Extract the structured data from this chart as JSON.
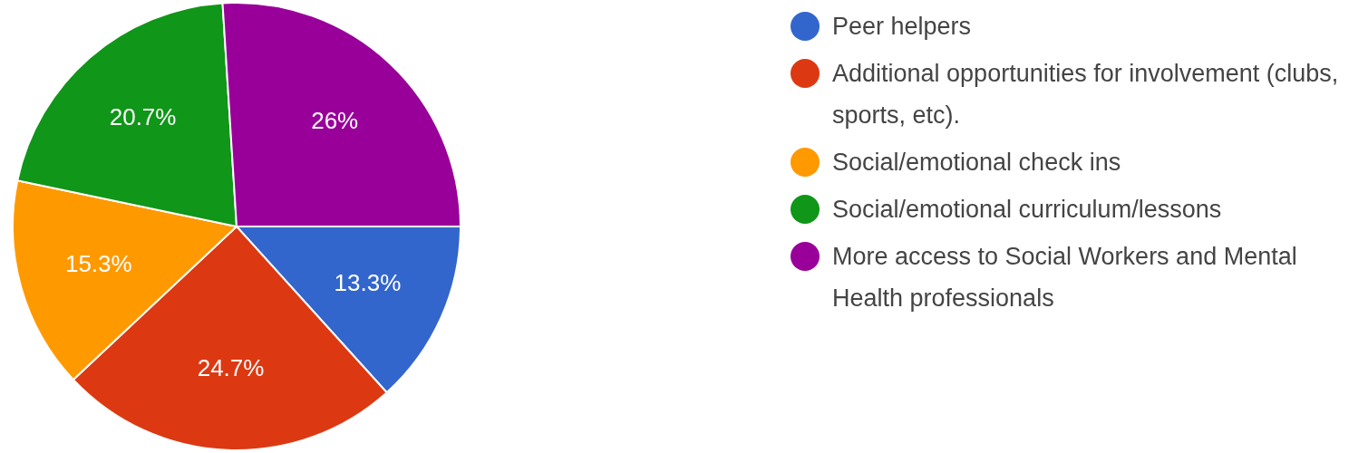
{
  "chart_data": {
    "type": "pie",
    "categories": [
      "Peer helpers",
      "Additional opportunities for involvement (clubs, sports, etc).",
      "Social/emotional check ins",
      "Social/emotional curriculum/lessons",
      "More access to Social Workers and Mental Health professionals"
    ],
    "values": [
      13.3,
      24.7,
      15.3,
      20.7,
      26
    ],
    "colors": [
      "#3366cc",
      "#dc3912",
      "#ff9900",
      "#109618",
      "#990099"
    ],
    "value_labels": [
      "13.3%",
      "24.7%",
      "15.3%",
      "20.7%",
      "26%"
    ],
    "legend": "right"
  }
}
